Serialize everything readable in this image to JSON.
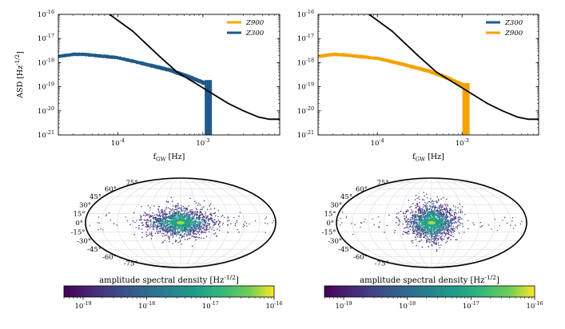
{
  "chart_data": [
    {
      "type": "line",
      "panel": "top-left",
      "xlabel": "f_GW [Hz]",
      "ylabel": "ASD [Hz^-1/2]",
      "xscale": "log",
      "yscale": "log",
      "xlim": [
        2e-05,
        0.008
      ],
      "ylim": [
        1e-21,
        1e-16
      ],
      "x_ticks": [
        "10^-4",
        "10^-3"
      ],
      "y_ticks": [
        "10^-21",
        "10^-20",
        "10^-19",
        "10^-18",
        "10^-17",
        "10^-16"
      ],
      "legend": {
        "placement": "top-right",
        "entries": [
          {
            "name": "Z900",
            "color": "#f5a300"
          },
          {
            "name": "Z300",
            "color": "#1f5a8a"
          }
        ]
      },
      "series": [
        {
          "name": "Z300",
          "color": "#1f5a8a",
          "plotted": true,
          "x": [
            2e-05,
            3e-05,
            4e-05,
            6e-05,
            0.0001,
            0.0002,
            0.0004,
            0.0007,
            0.001,
            0.0012
          ],
          "y": [
            1.8e-18,
            2.2e-18,
            2.2e-18,
            1.9e-18,
            1.6e-18,
            9e-19,
            5e-19,
            2.5e-19,
            1.5e-19,
            1.2e-19
          ],
          "cutoff_x": 0.00125
        },
        {
          "name": "Z900",
          "color": "#f5a300",
          "plotted": false
        }
      ],
      "sensitivity_curve": {
        "color": "#000000",
        "x": [
          8e-05,
          0.00015,
          0.0003,
          0.0005,
          0.001,
          0.002,
          0.003,
          0.0045,
          0.006,
          0.008
        ],
        "y": [
          1e-16,
          2e-17,
          2e-18,
          4e-19,
          9e-20,
          2e-20,
          1e-20,
          5.5e-21,
          4.5e-21,
          4.5e-21
        ]
      }
    },
    {
      "type": "line",
      "panel": "top-right",
      "xlabel": "f_GW [Hz]",
      "xscale": "log",
      "yscale": "log",
      "xlim": [
        2e-05,
        0.008
      ],
      "ylim": [
        1e-21,
        1e-16
      ],
      "x_ticks": [
        "10^-4",
        "10^-3"
      ],
      "y_ticks": [
        "10^-21",
        "10^-20",
        "10^-19",
        "10^-18",
        "10^-17",
        "10^-16"
      ],
      "legend": {
        "placement": "top-right",
        "entries": [
          {
            "name": "Z300",
            "color": "#1f5a8a"
          },
          {
            "name": "Z900",
            "color": "#f5a300"
          }
        ]
      },
      "series": [
        {
          "name": "Z900",
          "color": "#f5a300",
          "plotted": true,
          "x": [
            2e-05,
            3e-05,
            4e-05,
            6e-05,
            0.0001,
            0.0002,
            0.0004,
            0.0007,
            0.001,
            0.0012
          ],
          "y": [
            1.8e-18,
            2.2e-18,
            2.1e-18,
            1.8e-18,
            1.5e-18,
            8.5e-19,
            4.5e-19,
            2.2e-19,
            1.2e-19,
            9e-20
          ],
          "cutoff_x": 0.0012
        },
        {
          "name": "Z300",
          "color": "#1f5a8a",
          "plotted": false
        }
      ],
      "sensitivity_curve": {
        "color": "#000000",
        "x": [
          8e-05,
          0.00015,
          0.0003,
          0.0005,
          0.001,
          0.002,
          0.003,
          0.0045,
          0.006,
          0.008
        ],
        "y": [
          1e-16,
          2e-17,
          2e-18,
          4e-19,
          9e-20,
          2e-20,
          1e-20,
          5.5e-21,
          4.5e-21,
          4.5e-21
        ]
      }
    },
    {
      "type": "heatmap",
      "panel": "bottom-left",
      "projection": "mollweide",
      "lat_labels": [
        "75°",
        "60°",
        "45°",
        "30°",
        "15°",
        "0°",
        "-15°",
        "-30°",
        "-45°",
        "-60°",
        "-75°"
      ],
      "lat_values": [
        75,
        60,
        45,
        30,
        15,
        0,
        -15,
        -30,
        -45,
        -60,
        -75
      ],
      "spread": {
        "lon": 55,
        "lat": 20
      },
      "colorbar": {
        "label": "amplitude spectral density [Hz^-1/2]",
        "scale": "log",
        "range": [
          5e-20,
          1e-16
        ],
        "ticks": [
          "10^-19",
          "10^-18",
          "10^-17",
          "10^-16"
        ],
        "tick_values": [
          1e-19,
          1e-18,
          1e-17,
          1e-16
        ]
      }
    },
    {
      "type": "heatmap",
      "panel": "bottom-right",
      "projection": "mollweide",
      "lat_labels": [
        "75°",
        "60°",
        "45°",
        "30°",
        "15°",
        "0°",
        "-15°",
        "-30°",
        "-45°",
        "-60°",
        "-75°"
      ],
      "lat_values": [
        75,
        60,
        45,
        30,
        15,
        0,
        -15,
        -30,
        -45,
        -60,
        -75
      ],
      "spread": {
        "lon": 40,
        "lat": 26
      },
      "colorbar": {
        "label": "amplitude spectral density [Hz^-1/2]",
        "scale": "log",
        "range": [
          5e-20,
          1e-16
        ],
        "ticks": [
          "10^-19",
          "10^-18",
          "10^-17",
          "10^-16"
        ],
        "tick_values": [
          1e-19,
          1e-18,
          1e-17,
          1e-16
        ]
      }
    }
  ]
}
